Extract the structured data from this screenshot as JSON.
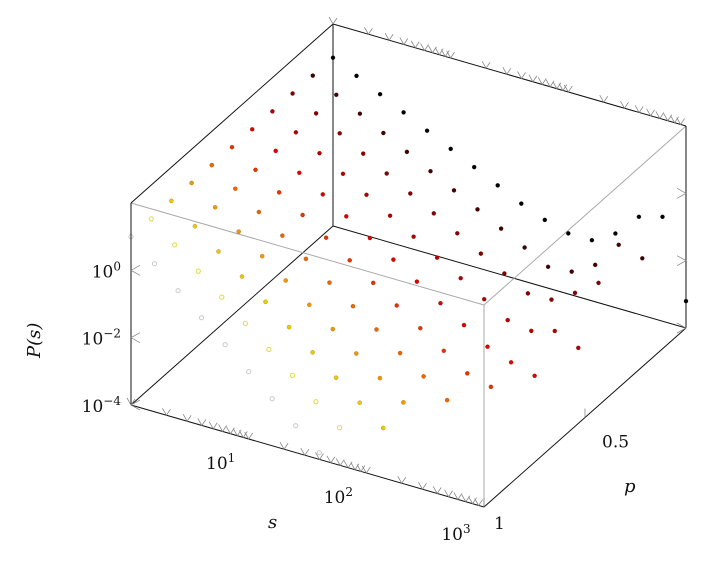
{
  "chart_data": {
    "type": "scatter3d",
    "title": "",
    "xlabel": "s",
    "ylabel": "p",
    "zlabel": "P(s)",
    "xscale": "log",
    "zscale": "log",
    "xlim_log10": [
      0,
      3
    ],
    "ylim": [
      0,
      1
    ],
    "zlim_log10": [
      -4,
      2
    ],
    "x_ticks": [
      {
        "base": "10",
        "exp": "1",
        "v": 1
      },
      {
        "base": "10",
        "exp": "2",
        "v": 2
      },
      {
        "base": "10",
        "exp": "3",
        "v": 3
      }
    ],
    "y_ticks": [
      {
        "label": "0.5",
        "v": 0.5
      },
      {
        "label": "1",
        "v": 1
      }
    ],
    "z_ticks": [
      {
        "base": "10",
        "exp": "0",
        "v": 0
      },
      {
        "base": "10",
        "exp": "−2",
        "v": -2
      },
      {
        "base": "10",
        "exp": "−4",
        "v": -4
      }
    ],
    "colormap": [
      {
        "p": 0.0,
        "color": "#000000"
      },
      {
        "p": 0.2,
        "color": "#8a0000"
      },
      {
        "p": 0.4,
        "color": "#e00000"
      },
      {
        "p": 0.65,
        "color": "#f08000"
      },
      {
        "p": 0.85,
        "color": "#f0e000"
      },
      {
        "p": 1.0,
        "color": "#c8c8c8"
      }
    ],
    "log10_s": [
      0,
      0.2,
      0.4,
      0.6,
      0.8,
      1.0,
      1.2,
      1.4,
      1.6,
      1.8,
      2.0,
      2.2,
      2.4,
      2.6,
      2.8,
      3.0
    ],
    "series": [
      {
        "p": 0.0,
        "log10_P": [
          1,
          0.66,
          0.32,
          -0.02,
          -0.36,
          -0.7,
          -1.04,
          -1.38,
          -1.72,
          -2.0,
          -2.2,
          -2.2,
          -1.8,
          -1.1,
          -0.9,
          -3.2
        ]
      },
      {
        "p": 0.1,
        "log10_P": [
          1,
          0.63,
          0.27,
          -0.1,
          -0.46,
          -0.83,
          -1.2,
          -1.56,
          -1.93,
          -2.29,
          -2.66,
          -2.6,
          -2.2,
          -1.4,
          -1.6,
          null
        ]
      },
      {
        "p": 0.2,
        "log10_P": [
          1,
          0.61,
          0.22,
          -0.18,
          -0.57,
          -0.96,
          -1.35,
          -1.74,
          -2.14,
          -2.53,
          -2.92,
          -2.9,
          -2.5,
          -2.0,
          null,
          null
        ]
      },
      {
        "p": 0.3,
        "log10_P": [
          1,
          0.58,
          0.16,
          -0.25,
          -0.67,
          -1.09,
          -1.51,
          -1.93,
          -2.34,
          -2.76,
          -3.18,
          -3.3,
          -3.1,
          -3.4,
          null,
          null
        ]
      },
      {
        "p": 0.4,
        "log10_P": [
          1,
          0.56,
          0.11,
          -0.33,
          -0.78,
          -1.22,
          -1.66,
          -2.11,
          -2.55,
          -3.0,
          -3.44,
          -3.7,
          -3.9,
          null,
          null,
          null
        ]
      },
      {
        "p": 0.5,
        "log10_P": [
          1,
          0.53,
          0.06,
          -0.41,
          -0.88,
          -1.35,
          -1.82,
          -2.29,
          -2.76,
          -3.23,
          -3.7,
          -3.9,
          null,
          null,
          null,
          null
        ]
      },
      {
        "p": 0.6,
        "log10_P": [
          1,
          0.5,
          0.01,
          -0.49,
          -0.98,
          -1.48,
          -1.98,
          -2.47,
          -2.97,
          -3.46,
          -3.96,
          null,
          null,
          null,
          null,
          null
        ]
      },
      {
        "p": 0.7,
        "log10_P": [
          1,
          0.48,
          -0.04,
          -0.57,
          -1.09,
          -1.61,
          -2.13,
          -2.65,
          -3.18,
          -3.7,
          null,
          null,
          null,
          null,
          null,
          null
        ]
      },
      {
        "p": 0.8,
        "log10_P": [
          1,
          0.45,
          -0.1,
          -0.64,
          -1.19,
          -1.74,
          -2.29,
          -2.84,
          -3.38,
          -3.93,
          null,
          null,
          null,
          null,
          null,
          null
        ]
      },
      {
        "p": 0.9,
        "log10_P": [
          1,
          0.43,
          -0.15,
          -0.72,
          -1.3,
          -1.87,
          -2.44,
          -3.02,
          -3.59,
          null,
          null,
          null,
          null,
          null,
          null,
          null
        ]
      },
      {
        "p": 1.0,
        "log10_P": [
          1,
          0.4,
          -0.2,
          -0.8,
          -1.4,
          -2.0,
          -2.6,
          -3.2,
          -3.8,
          null,
          null,
          null,
          null,
          null,
          null,
          null
        ]
      }
    ]
  }
}
